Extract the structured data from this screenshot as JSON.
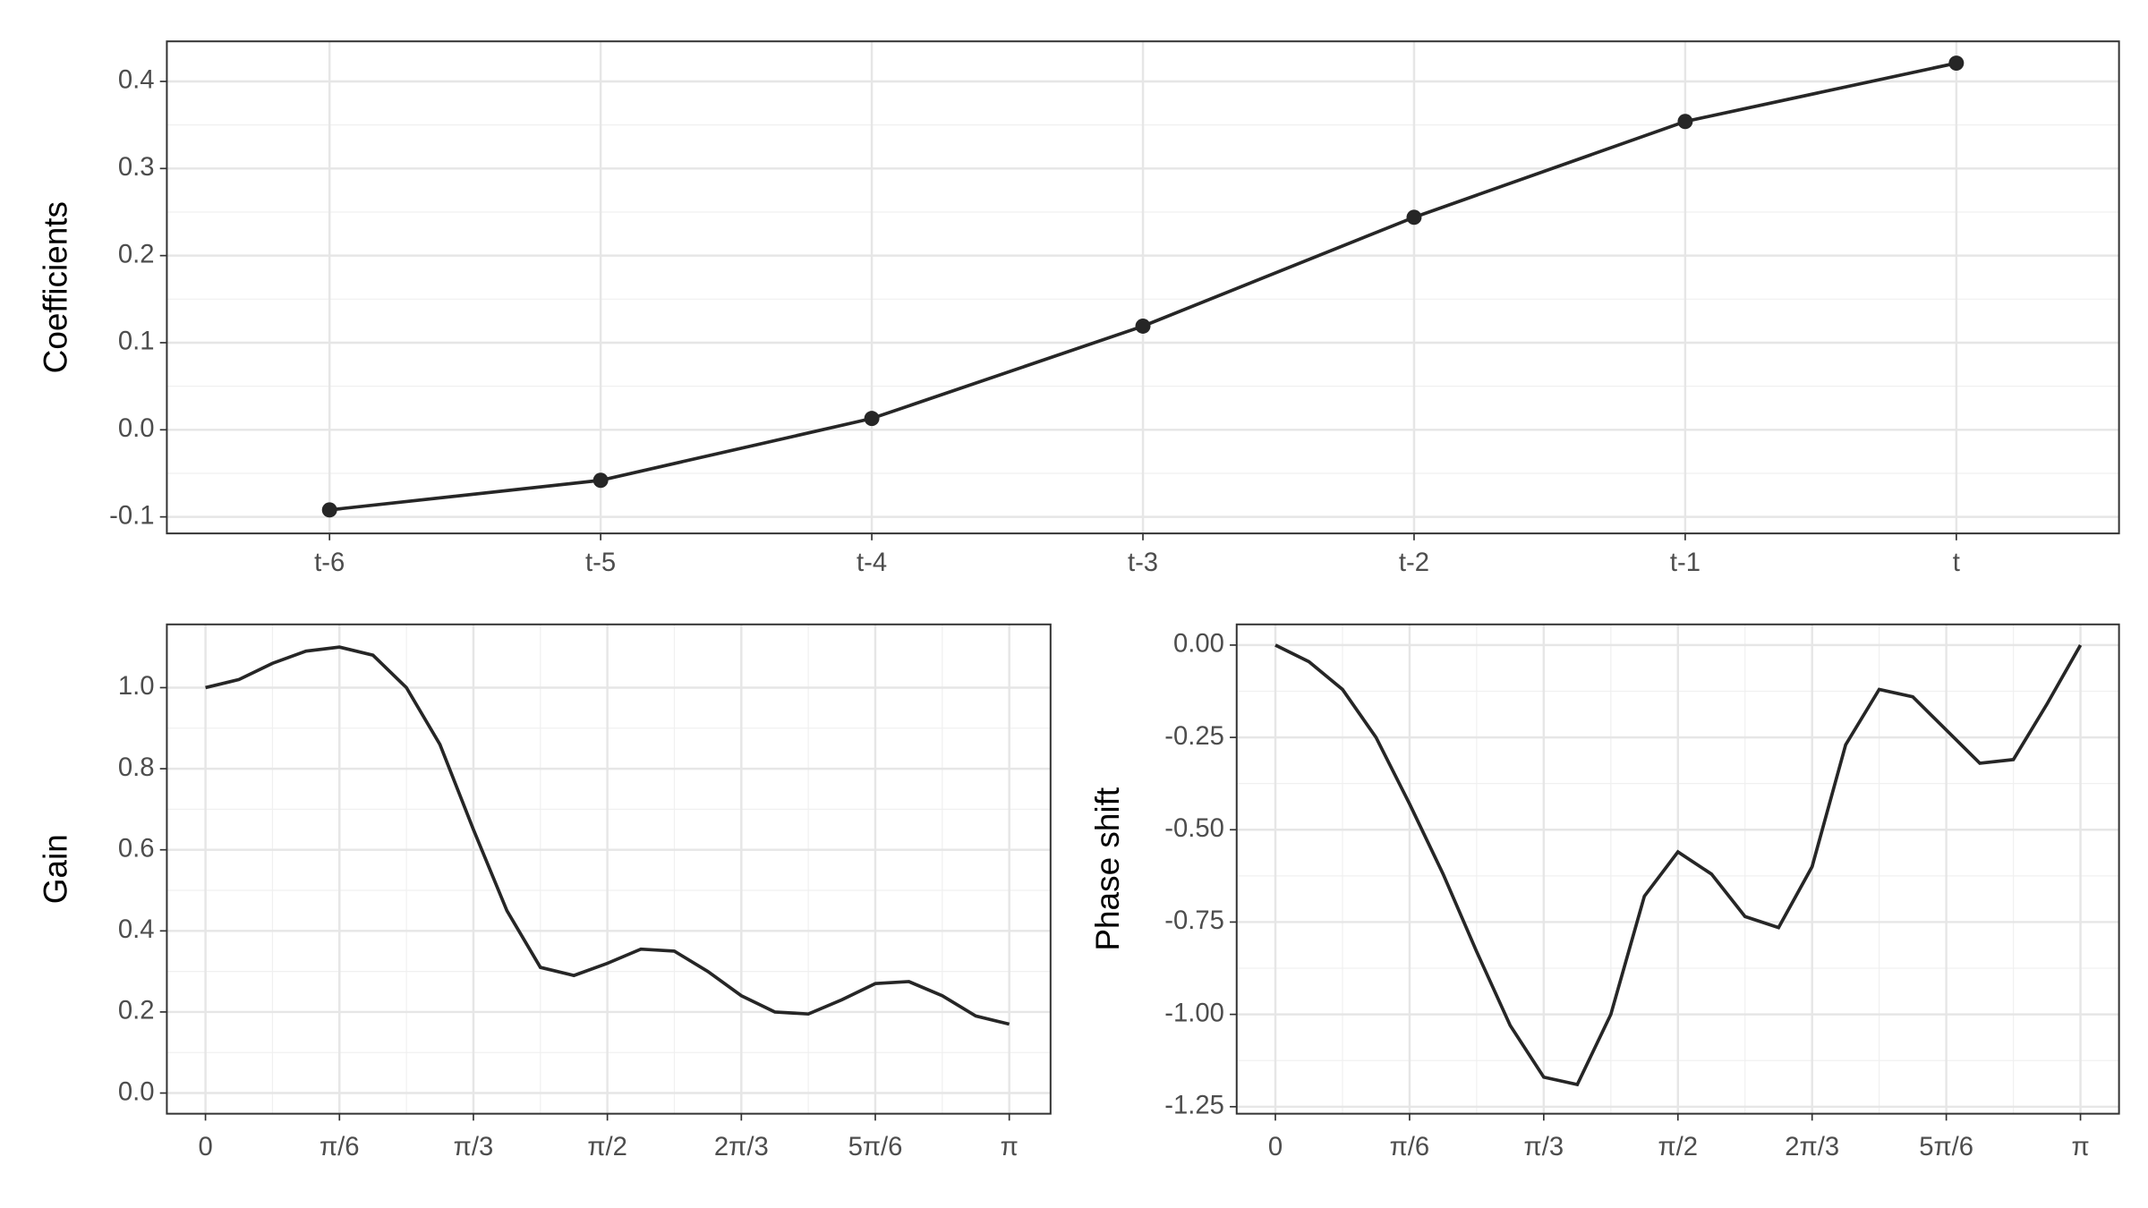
{
  "chart_data": [
    {
      "type": "line",
      "y_label": "Coefficients",
      "markers": true,
      "color": "#262626",
      "grid": true,
      "categories": [
        "t-6",
        "t-5",
        "t-4",
        "t-3",
        "t-2",
        "t-1",
        "t"
      ],
      "values": [
        -0.092,
        -0.058,
        0.013,
        0.119,
        0.244,
        0.354,
        0.421
      ],
      "ylim": [
        -0.119,
        0.446
      ],
      "yticks": [
        -0.1,
        {
          "value": 0,
          "label": "0.0"
        },
        0.1,
        0.2,
        0.3,
        0.4
      ]
    },
    {
      "type": "line",
      "y_label": "Gain",
      "markers": false,
      "color": "#262626",
      "grid": true,
      "x": [
        0,
        0.1309,
        0.2618,
        0.3927,
        0.5236,
        0.6545,
        0.7854,
        0.9163,
        1.0472,
        1.1781,
        1.309,
        1.4399,
        1.5708,
        1.7017,
        1.8326,
        1.9635,
        2.0944,
        2.2253,
        2.3562,
        2.4871,
        2.618,
        2.7489,
        2.8798,
        3.0107,
        3.1416
      ],
      "values": [
        1.0,
        1.02,
        1.06,
        1.09,
        1.1,
        1.08,
        1.0,
        0.86,
        0.65,
        0.45,
        0.31,
        0.29,
        0.32,
        0.355,
        0.35,
        0.3,
        0.24,
        0.2,
        0.195,
        0.23,
        0.27,
        0.275,
        0.24,
        0.19,
        0.17
      ],
      "xlim": [
        -0.151,
        3.303
      ],
      "ylim": [
        -0.051,
        1.156
      ],
      "xticks": [
        0,
        {
          "value": 0.5236,
          "label": "π/6"
        },
        {
          "value": 1.0472,
          "label": "π/3"
        },
        {
          "value": 1.5708,
          "label": "π/2"
        },
        {
          "value": 2.0944,
          "label": "2π/3"
        },
        {
          "value": 2.618,
          "label": "5π/6"
        },
        {
          "value": 3.1416,
          "label": "π"
        }
      ],
      "yticks": [
        {
          "value": 0,
          "label": "0.0"
        },
        0.2,
        0.4,
        0.6,
        0.8,
        {
          "value": 1,
          "label": "1.0"
        }
      ]
    },
    {
      "type": "line",
      "y_label": "Phase shift",
      "markers": false,
      "color": "#262626",
      "grid": true,
      "x": [
        0,
        0.1309,
        0.2618,
        0.3927,
        0.5236,
        0.6545,
        0.7854,
        0.9163,
        1.0472,
        1.1781,
        1.309,
        1.4399,
        1.5708,
        1.7017,
        1.8326,
        1.9635,
        2.0944,
        2.2253,
        2.3562,
        2.4871,
        2.618,
        2.7489,
        2.8798,
        3.0107,
        3.1416
      ],
      "values": [
        0.0,
        -0.045,
        -0.12,
        -0.25,
        -0.43,
        -0.62,
        -0.83,
        -1.03,
        -1.17,
        -1.19,
        -1.0,
        -0.68,
        -0.56,
        -0.62,
        -0.735,
        -0.765,
        -0.6,
        -0.27,
        -0.12,
        -0.14,
        -0.23,
        -0.32,
        -0.31,
        -0.16,
        0.0
      ],
      "xlim": [
        -0.151,
        3.292
      ],
      "ylim": [
        -1.269,
        0.056
      ],
      "xticks": [
        0,
        {
          "value": 0.5236,
          "label": "π/6"
        },
        {
          "value": 1.0472,
          "label": "π/3"
        },
        {
          "value": 1.5708,
          "label": "π/2"
        },
        {
          "value": 2.0944,
          "label": "2π/3"
        },
        {
          "value": 2.618,
          "label": "5π/6"
        },
        {
          "value": 3.1416,
          "label": "π"
        }
      ],
      "yticks": [
        {
          "value": -1.25,
          "label": "-1.25"
        },
        {
          "value": -1,
          "label": "-1.00"
        },
        {
          "value": -0.75,
          "label": "-0.75"
        },
        {
          "value": -0.5,
          "label": "-0.50"
        },
        {
          "value": -0.25,
          "label": "-0.25"
        },
        {
          "value": 0,
          "label": "0.00"
        }
      ]
    }
  ]
}
